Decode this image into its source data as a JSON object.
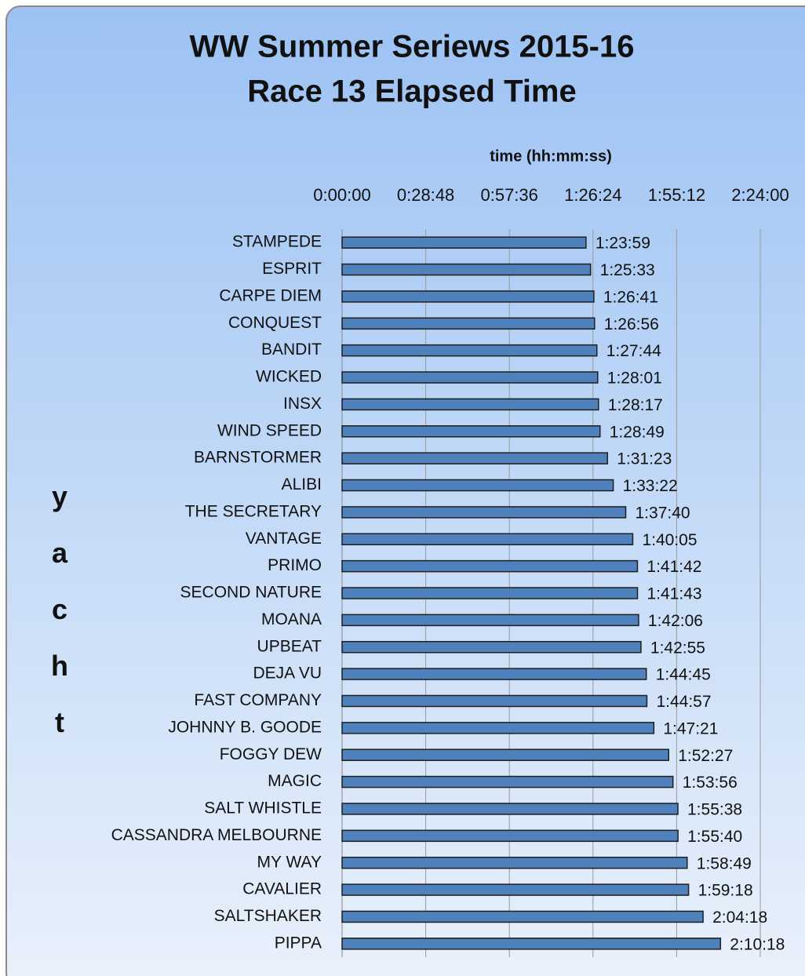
{
  "chart_data": {
    "type": "bar",
    "title": [
      "WW Summer Seriews 2015-16",
      "Race 13 Elapsed Time"
    ],
    "x_label": "time (hh:mm:ss)",
    "y_label": "yacht",
    "categories": [
      "STAMPEDE",
      "ESPRIT",
      "CARPE DIEM",
      "CONQUEST",
      "BANDIT",
      "WICKED",
      "INSX",
      "WIND SPEED",
      "BARNSTORMER",
      "ALIBI",
      "THE SECRETARY",
      "VANTAGE",
      "PRIMO",
      "SECOND NATURE",
      "MOANA",
      "UPBEAT",
      "DEJA VU",
      "FAST COMPANY",
      "JOHNNY B. GOODE",
      "FOGGY DEW",
      "MAGIC",
      "SALT WHISTLE",
      "CASSANDRA MELBOURNE",
      "MY WAY",
      "CAVALIER",
      "SALTSHAKER",
      "PIPPA"
    ],
    "values": [
      5039,
      5133,
      5201,
      5216,
      5264,
      5281,
      5297,
      5329,
      5483,
      5602,
      5860,
      6005,
      6102,
      6103,
      6126,
      6175,
      6285,
      6297,
      6441,
      6747,
      6836,
      6938,
      6940,
      7129,
      7158,
      7458,
      7818
    ],
    "value_labels": [
      "1:23:59",
      "1:25:33",
      "1:26:41",
      "1:26:56",
      "1:27:44",
      "1:28:01",
      "1:28:17",
      "1:28:49",
      "1:31:23",
      "1:33:22",
      "1:37:40",
      "1:40:05",
      "1:41:42",
      "1:41:43",
      "1:42:06",
      "1:42:55",
      "1:44:45",
      "1:44:57",
      "1:47:21",
      "1:52:27",
      "1:53:56",
      "1:55:38",
      "1:55:40",
      "1:58:49",
      "1:59:18",
      "2:04:18",
      "2:10:18"
    ],
    "color": "#4f81bd",
    "xlim": [
      0,
      8640
    ],
    "xticks": [
      {
        "value": 0,
        "label": "0:00:00"
      },
      {
        "value": 1728,
        "label": "0:28:48"
      },
      {
        "value": 3456,
        "label": "0:57:36"
      },
      {
        "value": 5184,
        "label": "1:26:24"
      },
      {
        "value": 6912,
        "label": "1:55:12"
      },
      {
        "value": 8640,
        "label": "2:24:00"
      }
    ],
    "grid": true
  }
}
